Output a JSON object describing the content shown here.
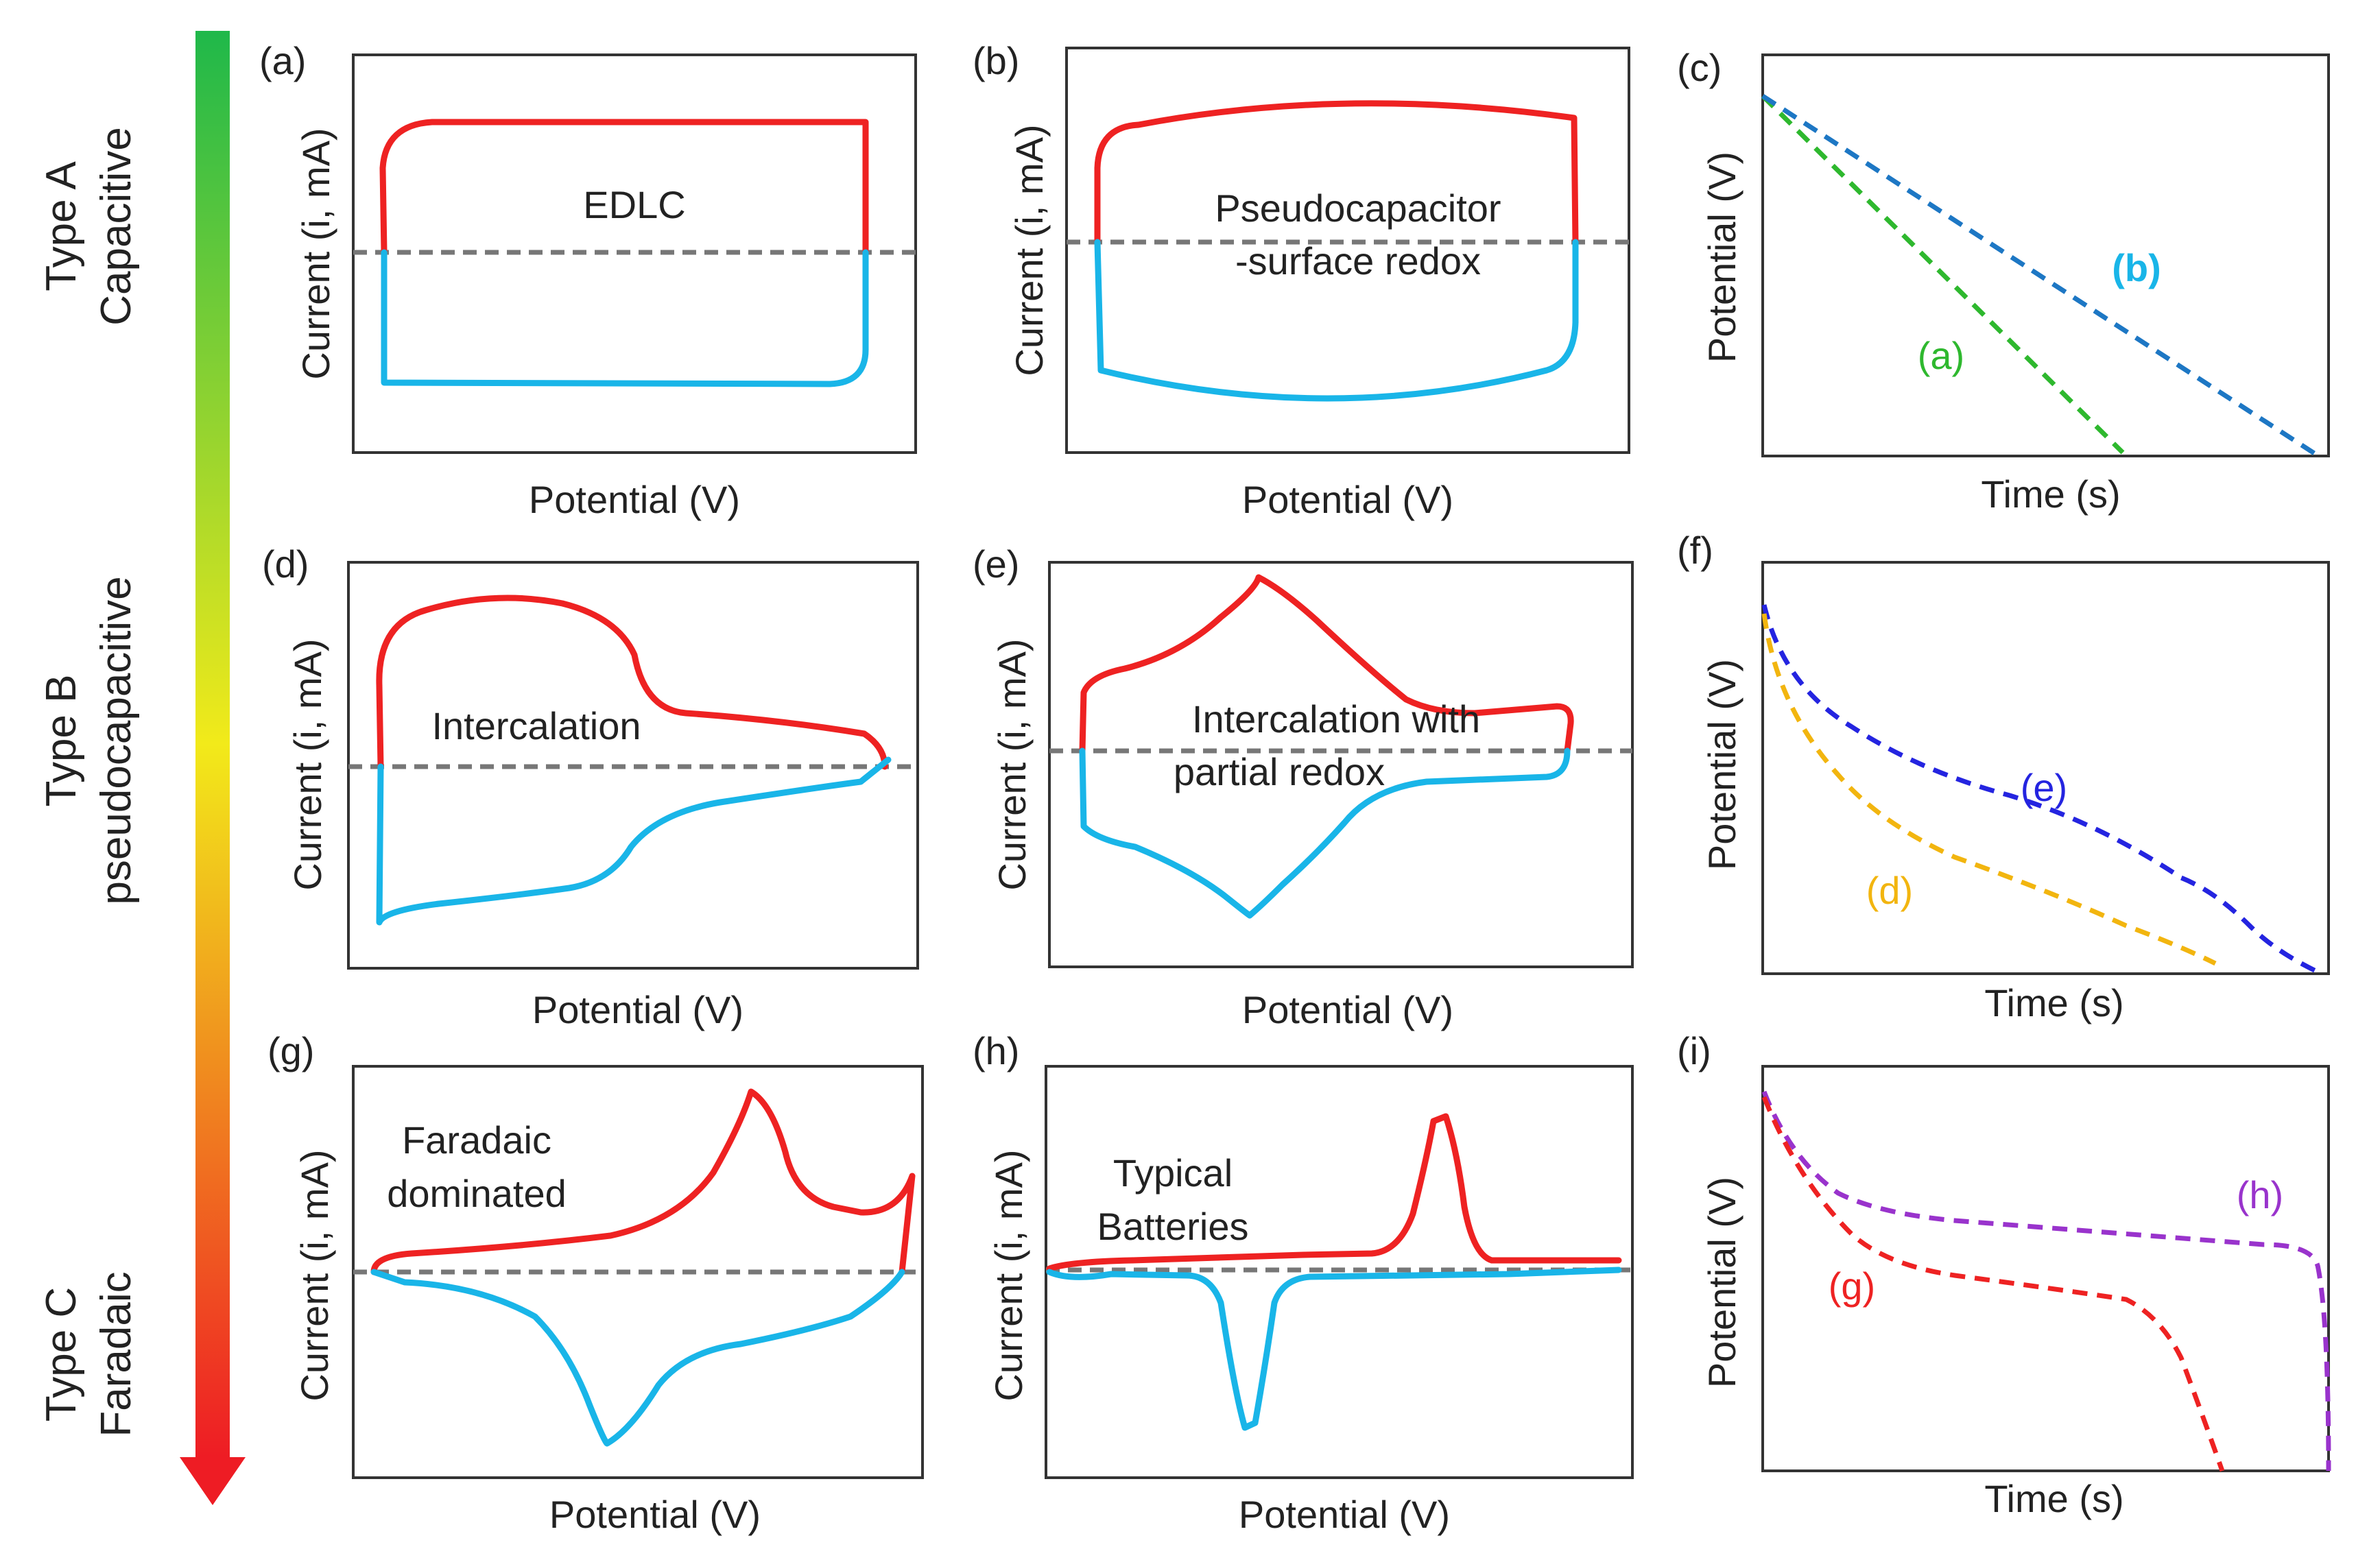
{
  "colors": {
    "charge": "#ee2222",
    "discharge": "#19b5e8",
    "baseline": "#777777",
    "series_a": "#2eb82e",
    "series_b": "#1d77c4",
    "series_b_label": "#19b5e8",
    "series_e": "#2424e0",
    "series_d": "#f2b50f",
    "series_h": "#9933cc",
    "series_g": "#ee2222",
    "arrow_top": "#1fb84a",
    "arrow_mid": "#f2ea1a",
    "arrow_bottom": "#ee1c24"
  },
  "rows": [
    {
      "type": "Type A",
      "kind": "Capacitive"
    },
    {
      "type": "Type B",
      "kind": "pseudocapacitive"
    },
    {
      "type": "Type C",
      "kind": "Faradaic"
    }
  ],
  "panels": {
    "a": {
      "letter": "(a)",
      "xlabel": "Potential (V)",
      "ylabel": "Current (i, mA)",
      "lines": [
        "EDLC"
      ]
    },
    "b": {
      "letter": "(b)",
      "xlabel": "Potential (V)",
      "ylabel": "Current (i, mA)",
      "lines": [
        "Pseudocapacitor",
        "-surface redox"
      ]
    },
    "c": {
      "letter": "(c)",
      "xlabel": "Time (s)",
      "ylabel": "Potential (V)",
      "series": [
        "(a)",
        "(b)"
      ]
    },
    "d": {
      "letter": "(d)",
      "xlabel": "Potential (V)",
      "ylabel": "Current (i, mA)",
      "lines": [
        "Intercalation"
      ]
    },
    "e": {
      "letter": "(e)",
      "xlabel": "Potential (V)",
      "ylabel": "Current (i, mA)",
      "lines": [
        "Intercalation with",
        "partial redox"
      ]
    },
    "f": {
      "letter": "(f)",
      "xlabel": "Time (s)",
      "ylabel": "Potential (V)",
      "series": [
        "(e)",
        "(d)"
      ]
    },
    "g": {
      "letter": "(g)",
      "xlabel": "Potential (V)",
      "ylabel": "Current (i, mA)",
      "lines": [
        "Faradaic",
        "dominated"
      ]
    },
    "h": {
      "letter": "(h)",
      "xlabel": "Potential (V)",
      "ylabel": "Current (i, mA)",
      "lines": [
        "Typical",
        "Batteries"
      ]
    },
    "i": {
      "letter": "(i)",
      "xlabel": "Time (s)",
      "ylabel": "Potential (V)",
      "series": [
        "(h)",
        "(g)"
      ]
    }
  }
}
